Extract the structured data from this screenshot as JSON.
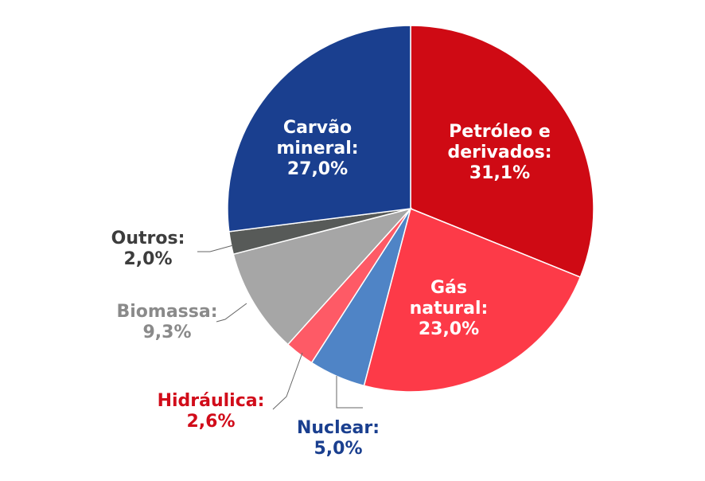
{
  "chart_data": {
    "type": "pie",
    "title": "",
    "slices": [
      {
        "label_lines": [
          "Petróleo e",
          "derivados:",
          "31,1%"
        ],
        "value": 31.1,
        "color": "#cf0a14",
        "label_color": "#ffffff",
        "label_placement": "inside"
      },
      {
        "label_lines": [
          "Gás",
          "natural:",
          "23,0%"
        ],
        "value": 23.0,
        "color": "#fd3a48",
        "label_color": "#ffffff",
        "label_placement": "inside"
      },
      {
        "label_lines": [
          "Nuclear:",
          "5,0%"
        ],
        "value": 5.0,
        "color": "#4f84c6",
        "label_color": "#1a3f8f",
        "label_placement": "outside"
      },
      {
        "label_lines": [
          "Hidráulica:",
          "2,6%"
        ],
        "value": 2.6,
        "color": "#fe5a66",
        "label_color": "#d10c1a",
        "label_placement": "outside"
      },
      {
        "label_lines": [
          "Biomassa:",
          "9,3%"
        ],
        "value": 9.3,
        "color": "#a6a6a6",
        "label_color": "#8a8a8a",
        "label_placement": "outside"
      },
      {
        "label_lines": [
          "Outros:",
          "2,0%"
        ],
        "value": 2.0,
        "color": "#575a58",
        "label_color": "#3d3d3d",
        "label_placement": "outside"
      },
      {
        "label_lines": [
          "Carvão",
          "mineral:",
          "27,0%"
        ],
        "value": 27.0,
        "color": "#1a3f8f",
        "label_color": "#ffffff",
        "label_placement": "inside"
      }
    ]
  }
}
